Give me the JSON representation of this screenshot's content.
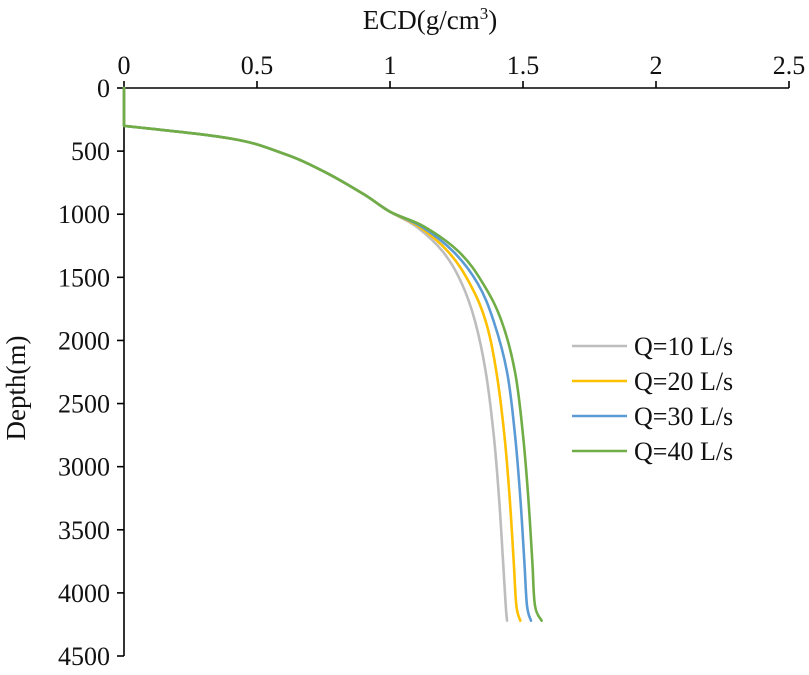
{
  "chart_data": {
    "type": "line",
    "title": "",
    "xlabel": "ECD(g/cm",
    "xlabel_superscript": "3",
    "xlabel_suffix": ")",
    "ylabel": "Depth(m)",
    "xlim": [
      0,
      2.5
    ],
    "ylim": [
      0,
      4500
    ],
    "x_axis_position": "top",
    "y_axis_inverted": true,
    "x_ticks": [
      0,
      0.5,
      1,
      1.5,
      2,
      2.5
    ],
    "x_tick_labels": [
      "0",
      "0.5",
      "1",
      "1.5",
      "2",
      "2.5"
    ],
    "y_ticks": [
      0,
      500,
      1000,
      1500,
      2000,
      2500,
      3000,
      3500,
      4000,
      4500
    ],
    "y_tick_labels": [
      "0",
      "500",
      "1000",
      "1500",
      "2000",
      "2500",
      "3000",
      "3500",
      "4000",
      "4500"
    ],
    "grid": false,
    "legend_position": "right-middle",
    "series": [
      {
        "name": "Q=10 L/s",
        "color": "#BDBDBD",
        "points": [
          [
            0,
            0
          ],
          [
            0,
            300
          ],
          [
            0.4,
            400
          ],
          [
            0.6,
            520
          ],
          [
            0.75,
            660
          ],
          [
            0.9,
            840
          ],
          [
            1.0,
            980
          ],
          [
            1.1,
            1100
          ],
          [
            1.2,
            1300
          ],
          [
            1.27,
            1550
          ],
          [
            1.32,
            1850
          ],
          [
            1.36,
            2250
          ],
          [
            1.39,
            2750
          ],
          [
            1.41,
            3250
          ],
          [
            1.425,
            3750
          ],
          [
            1.435,
            4100
          ],
          [
            1.44,
            4220
          ]
        ]
      },
      {
        "name": "Q=20 L/s",
        "color": "#FFC000",
        "points": [
          [
            0,
            0
          ],
          [
            0,
            300
          ],
          [
            0.4,
            400
          ],
          [
            0.6,
            520
          ],
          [
            0.75,
            660
          ],
          [
            0.9,
            840
          ],
          [
            1.0,
            980
          ],
          [
            1.11,
            1100
          ],
          [
            1.22,
            1300
          ],
          [
            1.3,
            1550
          ],
          [
            1.36,
            1850
          ],
          [
            1.4,
            2250
          ],
          [
            1.43,
            2750
          ],
          [
            1.45,
            3250
          ],
          [
            1.465,
            3750
          ],
          [
            1.475,
            4100
          ],
          [
            1.49,
            4220
          ]
        ]
      },
      {
        "name": "Q=30 L/s",
        "color": "#5B9BD5",
        "points": [
          [
            0,
            0
          ],
          [
            0,
            300
          ],
          [
            0.4,
            400
          ],
          [
            0.6,
            520
          ],
          [
            0.75,
            660
          ],
          [
            0.9,
            840
          ],
          [
            1.0,
            980
          ],
          [
            1.12,
            1100
          ],
          [
            1.24,
            1300
          ],
          [
            1.33,
            1550
          ],
          [
            1.39,
            1850
          ],
          [
            1.44,
            2250
          ],
          [
            1.47,
            2750
          ],
          [
            1.49,
            3250
          ],
          [
            1.505,
            3750
          ],
          [
            1.515,
            4100
          ],
          [
            1.53,
            4220
          ]
        ]
      },
      {
        "name": "Q=40 L/s",
        "color": "#70AD47",
        "points": [
          [
            0,
            0
          ],
          [
            0,
            300
          ],
          [
            0.4,
            400
          ],
          [
            0.6,
            520
          ],
          [
            0.75,
            660
          ],
          [
            0.9,
            840
          ],
          [
            1.0,
            980
          ],
          [
            1.13,
            1100
          ],
          [
            1.26,
            1300
          ],
          [
            1.35,
            1550
          ],
          [
            1.42,
            1850
          ],
          [
            1.47,
            2250
          ],
          [
            1.5,
            2750
          ],
          [
            1.52,
            3250
          ],
          [
            1.535,
            3750
          ],
          [
            1.545,
            4100
          ],
          [
            1.57,
            4220
          ]
        ]
      }
    ]
  }
}
